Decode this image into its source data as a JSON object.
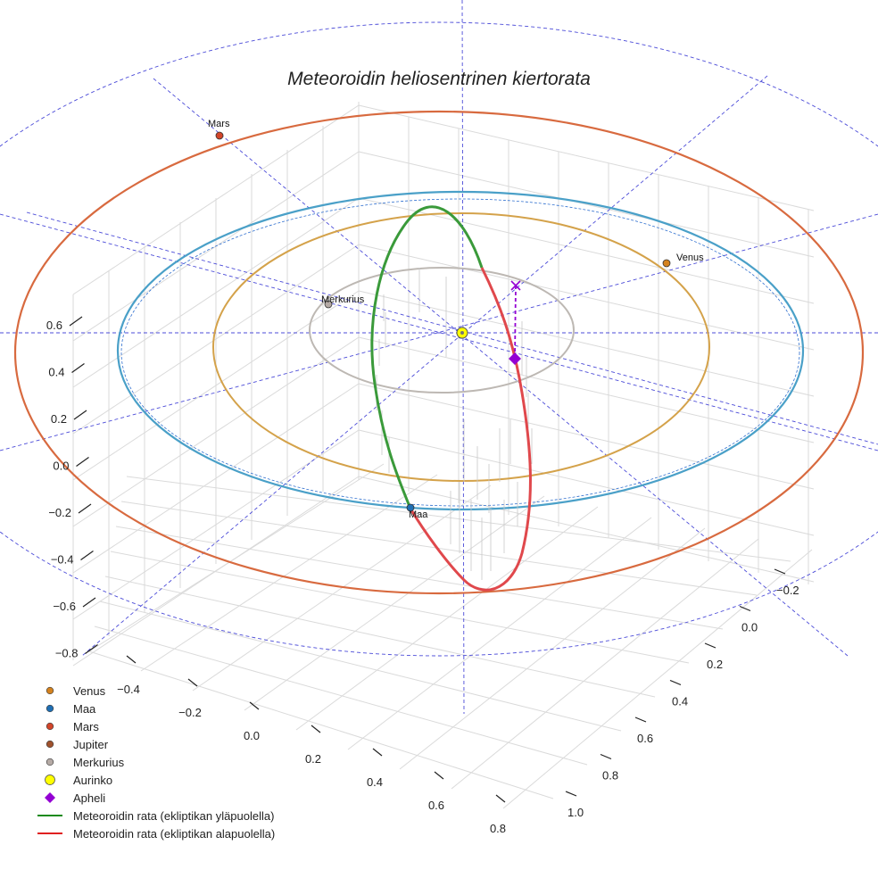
{
  "chart_data": {
    "type": "scatter",
    "title": "Meteoroidin heliosentrinen kiertorata",
    "axes": {
      "x_ticks": [
        "−0.4",
        "−0.2",
        "0.0",
        "0.2",
        "0.4",
        "0.6",
        "0.8"
      ],
      "y_ticks": [
        "−0.2",
        "0.0",
        "0.2",
        "0.4",
        "0.6",
        "0.8",
        "1.0"
      ],
      "z_ticks": [
        "0.6",
        "0.4",
        "0.2",
        "0.0",
        "−0.2",
        "−0.4",
        "−0.6",
        "−0.8"
      ],
      "xlim": [
        -0.5,
        0.9
      ],
      "ylim": [
        -0.3,
        1.1
      ],
      "zlim": [
        -0.9,
        0.7
      ],
      "grid": true
    },
    "planets": [
      {
        "name": "Venus",
        "label": "Venus",
        "x": 0.72,
        "y": 0.0,
        "z": 0.0
      },
      {
        "name": "Maa",
        "label": "Maa",
        "x": -0.17,
        "y": 0.98,
        "z": 0.0
      },
      {
        "name": "Mars",
        "label": "Mars",
        "x": -1.3,
        "y": -0.4,
        "z": 0.0
      },
      {
        "name": "Merkurius",
        "label": "Merkurius",
        "x": -0.36,
        "y": -0.1,
        "z": 0.0
      }
    ],
    "sun": {
      "label": "Aurinko",
      "x": 0.0,
      "y": 0.0,
      "z": 0.0
    },
    "aphelion": {
      "label": "Apheli",
      "x": 0.12,
      "y": 0.0,
      "z": -0.12
    },
    "orbits": [
      {
        "name": "Merkurius",
        "radius_au": 0.39
      },
      {
        "name": "Venus",
        "radius_au": 0.72
      },
      {
        "name": "Maa",
        "radius_au": 1.0
      },
      {
        "name": "Mars",
        "radius_au": 1.52
      }
    ],
    "meteoroid_orbit": {
      "above_label": "Meteoroidin rata (ekliptikan yläpuolella)",
      "below_label": "Meteoroidin rata (ekliptikan alapuolella)"
    },
    "legend": {
      "placement": "bottom-left",
      "entries": [
        {
          "label": "Venus",
          "marker": "circle",
          "color": "#D4821E"
        },
        {
          "label": "Maa",
          "marker": "circle",
          "color": "#1F6FB4"
        },
        {
          "label": "Mars",
          "marker": "circle",
          "color": "#D2452A"
        },
        {
          "label": "Jupiter",
          "marker": "circle",
          "color": "#A0522D"
        },
        {
          "label": "Merkurius",
          "marker": "circle",
          "color": "#B5AAA5"
        },
        {
          "label": "Aurinko",
          "marker": "circle-large",
          "color": "#FFFF00"
        },
        {
          "label": "Apheli",
          "marker": "diamond",
          "color": "#9400D3"
        },
        {
          "label": "Meteoroidin rata (ekliptikan yläpuolella)",
          "marker": "line",
          "color": "#1A8A1A"
        },
        {
          "label": "Meteoroidin rata (ekliptikan alapuolella)",
          "marker": "line",
          "color": "#E02020"
        }
      ]
    }
  },
  "colors": {
    "mars_orbit": "#D86A3F",
    "earth_orbit": "#4AA0C8",
    "venus_orbit": "#D4A24A",
    "mercury_orbit": "#BDB8B3",
    "guide": "#4B4BD8",
    "grid": "#DADADA",
    "above": "#3A9A3A",
    "below": "#E0484C",
    "aphelion": "#9400D3"
  }
}
